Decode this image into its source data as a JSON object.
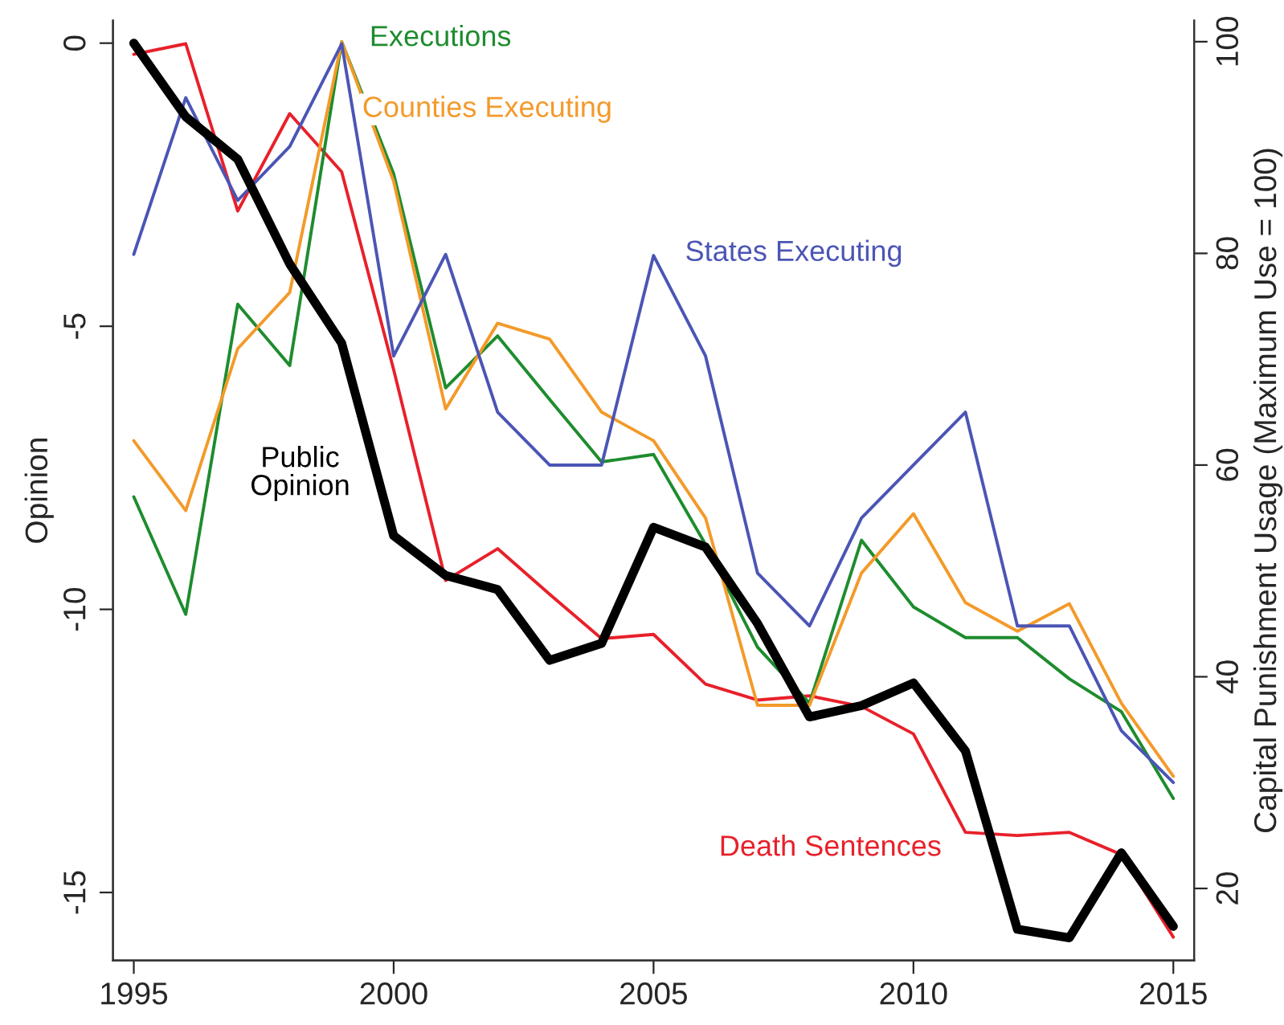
{
  "chart_data": {
    "type": "line",
    "ylabel": "Opinion",
    "y2label": "Capital Punishment Usage (Maximum Use = 100)",
    "x": [
      1995,
      1996,
      1997,
      1998,
      1999,
      2000,
      2001,
      2002,
      2003,
      2004,
      2005,
      2006,
      2007,
      2008,
      2009,
      2010,
      2011,
      2012,
      2013,
      2014,
      2015
    ],
    "xlim": [
      1994.6,
      2015.4
    ],
    "xticks": [
      1995,
      2000,
      2005,
      2010,
      2015
    ],
    "ylim": [
      -16.2,
      0.4
    ],
    "yticks": [
      -15,
      -10,
      -5,
      0
    ],
    "y2lim": [
      13.2,
      102
    ],
    "y2ticks": [
      20,
      40,
      60,
      80,
      100
    ],
    "series": [
      {
        "name": "Public\nOpinion",
        "color": "#000000",
        "values": [
          0.0,
          -1.3,
          -2.05,
          -3.9,
          -5.3,
          -8.7,
          -9.4,
          -9.65,
          -10.9,
          -10.6,
          -8.55,
          -8.9,
          -10.25,
          -11.9,
          -11.7,
          -11.3,
          -12.5,
          -15.65,
          -15.8,
          -14.3,
          -15.6
        ]
      },
      {
        "name": "Death Sentences",
        "color": "#e8202a",
        "axis": "y2",
        "values": [
          98.8,
          99.8,
          84,
          93.2,
          87.7,
          69,
          49.1,
          52.1,
          47.8,
          43.6,
          44,
          39.3,
          37.8,
          38.2,
          37.2,
          34.6,
          25.3,
          25,
          25.3,
          23.2,
          15.4
        ]
      },
      {
        "name": "Executions",
        "color": "#1e8c2e",
        "axis": "y2",
        "values": [
          57,
          45.9,
          75.2,
          69.4,
          100,
          87.5,
          67.3,
          72.2,
          66.2,
          60.3,
          61,
          52.5,
          42.8,
          37.5,
          52.9,
          46.6,
          43.7,
          43.7,
          39.8,
          36.7,
          28.5
        ]
      },
      {
        "name": "Counties Executing",
        "color": "#f39a2a",
        "axis": "y2",
        "values": [
          62.3,
          55.7,
          71,
          76.3,
          100,
          86.8,
          65.3,
          73.4,
          71.9,
          65,
          62.3,
          55,
          37.3,
          37.3,
          49.8,
          55.4,
          47,
          44.3,
          46.9,
          37.5,
          30.6
        ]
      },
      {
        "name": "States Executing",
        "color": "#4b55b5",
        "axis": "y2",
        "values": [
          79.9,
          94.7,
          85,
          90.1,
          99.8,
          70.3,
          79.9,
          65,
          60,
          60,
          79.8,
          70.3,
          49.8,
          44.8,
          55,
          60,
          65,
          44.8,
          44.8,
          34.9,
          30
        ]
      }
    ],
    "grid": false,
    "legend": false,
    "line_style": "solid",
    "marker": "none"
  }
}
